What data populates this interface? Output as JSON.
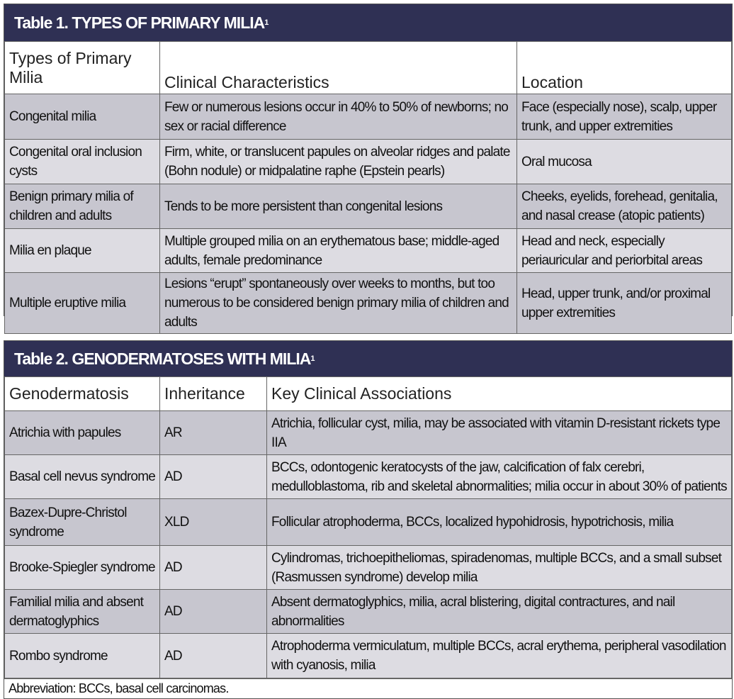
{
  "table1": {
    "title": "Table 1. TYPES OF PRIMARY MILIA",
    "sup": "1",
    "headers": [
      "Types of Primary Milia",
      "Clinical Characteristics",
      "Location"
    ],
    "rows": [
      [
        "Congenital milia",
        "Few or numerous lesions occur in 40% to 50% of newborns; no sex or racial difference",
        "Face (especially nose), scalp, upper trunk, and upper extremities"
      ],
      [
        "Congenital oral inclusion cysts",
        "Firm, white, or translucent papules on alveolar ridges and palate (Bohn nodule) or midpalatine raphe (Epstein pearls)",
        "Oral mucosa"
      ],
      [
        "Benign primary milia of children and adults",
        "Tends to be more persistent than congenital lesions",
        "Cheeks, eyelids, forehead, genitalia, and nasal crease (atopic patients)"
      ],
      [
        "Milia en plaque",
        "Multiple grouped milia on an erythematous base; middle-aged adults, female predominance",
        "Head and neck, especially periauricular and periorbital areas"
      ],
      [
        "Multiple eruptive milia",
        "Lesions “erupt” spontaneously over weeks to months, but too numerous to be considered benign primary milia of children and adults",
        "Head, upper trunk, and/or proximal upper extremities"
      ]
    ]
  },
  "table2": {
    "title": "Table 2. GENODERMATOSES WITH MILIA",
    "sup": "1",
    "headers": [
      "Genodermatosis",
      "Inheritance",
      "Key Clinical Associations"
    ],
    "rows": [
      [
        "Atrichia with papules",
        "AR",
        "Atrichia, follicular cyst, milia, may be associated with vitamin D-resistant rickets type IIA"
      ],
      [
        "Basal cell nevus syndrome",
        "AD",
        "BCCs, odontogenic keratocysts of the jaw, calcification of falx cerebri, medulloblastoma, rib and skeletal abnormalities; milia occur in about 30% of patients"
      ],
      [
        "Bazex-Dupre-Christol syndrome",
        "XLD",
        "Follicular atrophoderma, BCCs, localized hypohidrosis, hypotrichosis, milia"
      ],
      [
        "Brooke-Spiegler syndrome",
        "AD",
        "Cylindromas, trichoepitheliomas, spiradenomas, multiple BCCs, and a small subset (Rasmussen syndrome) develop milia"
      ],
      [
        "Familial milia and absent dermatoglyphics",
        "AD",
        "Absent dermatoglyphics, milia, acral blistering, digital contractures, and nail abnormalities"
      ],
      [
        "Rombo syndrome",
        "AD",
        "Atrophoderma vermiculatum, multiple BCCs, acral erythema, peripheral vasodilation with cyanosis, milia"
      ]
    ],
    "footnote": "Abbreviation: BCCs, basal cell carcinomas."
  }
}
